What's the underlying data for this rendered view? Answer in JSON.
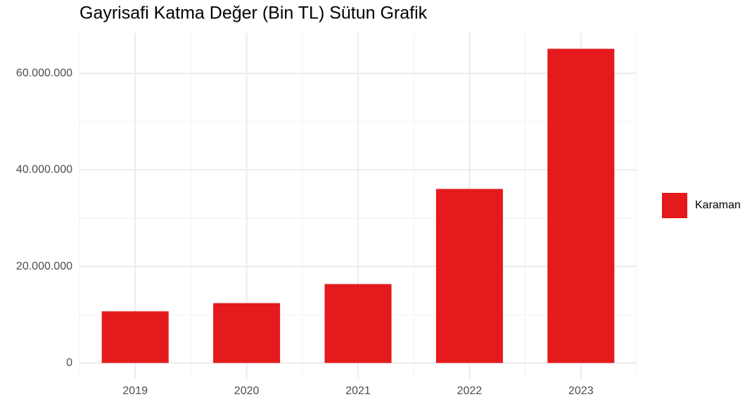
{
  "chart_data": {
    "type": "bar",
    "title": "Gayrisafi Katma Değer (Bin TL) Sütun Grafik",
    "categories": [
      "2019",
      "2020",
      "2021",
      "2022",
      "2023"
    ],
    "series": [
      {
        "name": "Karaman",
        "color": "#e41a1c",
        "values": [
          10700000,
          12400000,
          16350000,
          36060000,
          65100000
        ]
      }
    ],
    "ylim": [
      -3255000,
      68355000
    ],
    "yticks": [
      0,
      {
        "value": 20000000,
        "label": "20.000.000"
      },
      {
        "value": 40000000,
        "label": "40.000.000"
      },
      {
        "value": 60000000,
        "label": "60.000.000"
      }
    ],
    "minor_yticks": [
      10000000,
      30000000,
      50000000
    ],
    "grid": true,
    "legend": "right"
  }
}
